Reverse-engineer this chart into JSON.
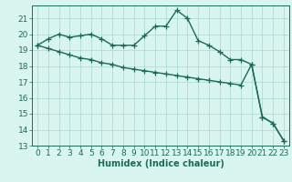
{
  "xlabel": "Humidex (Indice chaleur)",
  "x_values": [
    0,
    1,
    2,
    3,
    4,
    5,
    6,
    7,
    8,
    9,
    10,
    11,
    12,
    13,
    14,
    15,
    16,
    17,
    18,
    19,
    20,
    21,
    22,
    23
  ],
  "line1": [
    19.3,
    19.7,
    20.0,
    19.8,
    19.9,
    20.0,
    19.7,
    19.3,
    19.3,
    19.3,
    19.9,
    20.5,
    20.5,
    21.5,
    21.0,
    19.6,
    19.3,
    18.9,
    18.4,
    18.4,
    18.1,
    14.8,
    14.4,
    13.3
  ],
  "line2": [
    19.3,
    19.1,
    18.9,
    18.7,
    18.5,
    18.4,
    18.2,
    18.1,
    17.9,
    17.8,
    17.7,
    17.6,
    17.5,
    17.4,
    17.3,
    17.2,
    17.1,
    17.0,
    16.9,
    16.8,
    18.1,
    14.8,
    14.4,
    13.3
  ],
  "line_color": "#1a6b5a",
  "bg_color": "#d8f5f0",
  "grid_color": "#a8d8d0",
  "ylim": [
    13,
    21.8
  ],
  "xlim": [
    -0.5,
    23.5
  ],
  "yticks": [
    13,
    14,
    15,
    16,
    17,
    18,
    19,
    20,
    21
  ],
  "xticks": [
    0,
    1,
    2,
    3,
    4,
    5,
    6,
    7,
    8,
    9,
    10,
    11,
    12,
    13,
    14,
    15,
    16,
    17,
    18,
    19,
    20,
    21,
    22,
    23
  ],
  "marker": "+",
  "markersize": 4,
  "linewidth": 1.0,
  "xlabel_fontsize": 7,
  "tick_fontsize": 6.5
}
